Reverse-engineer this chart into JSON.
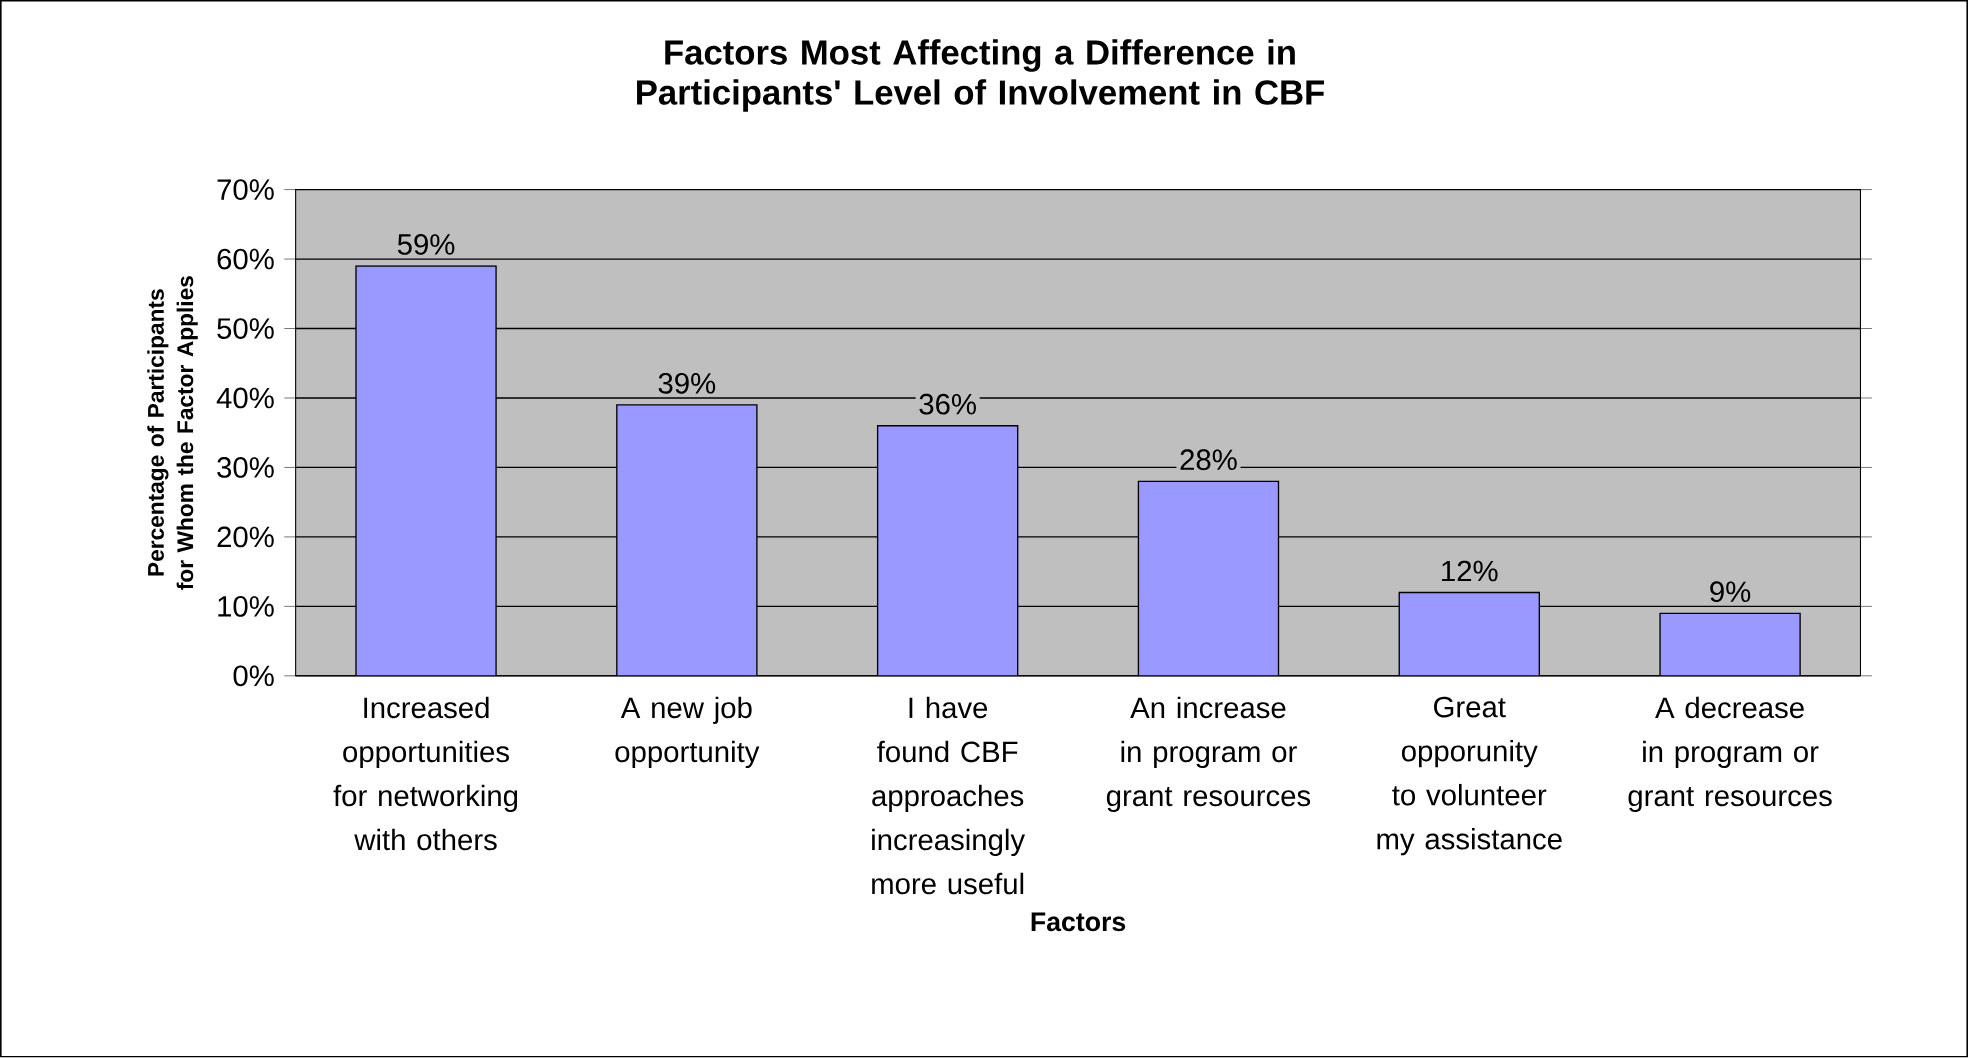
{
  "chart_data": {
    "type": "bar",
    "title": "Factors Most Affecting a Difference in Participants' Level of Involvement in CBF",
    "xlabel": "Factors",
    "ylabel": "Percentage of Participants for Whom the Factor Applies",
    "categories": [
      "Increased opportunities for networking with others",
      "A new job opportunity",
      "I have found CBF approaches increasingly more useful",
      "An increase in program or grant resources",
      "Great opporunity to volunteer my assistance",
      "A decrease in program or grant resources"
    ],
    "values": [
      59,
      39,
      36,
      28,
      12,
      9
    ],
    "value_labels": [
      "59%",
      "39%",
      "36%",
      "28%",
      "12%",
      "9%"
    ],
    "color": "#9999ff",
    "ylim": [
      0,
      70
    ],
    "yticks": [
      {
        "value": 0,
        "label": "0%"
      },
      {
        "value": 10,
        "label": "10%"
      },
      {
        "value": 20,
        "label": "20%"
      },
      {
        "value": 30,
        "label": "30%"
      },
      {
        "value": 40,
        "label": "40%"
      },
      {
        "value": 50,
        "label": "50%"
      },
      {
        "value": 60,
        "label": "60%"
      },
      {
        "value": 70,
        "label": "70%"
      }
    ],
    "grid": "y"
  }
}
